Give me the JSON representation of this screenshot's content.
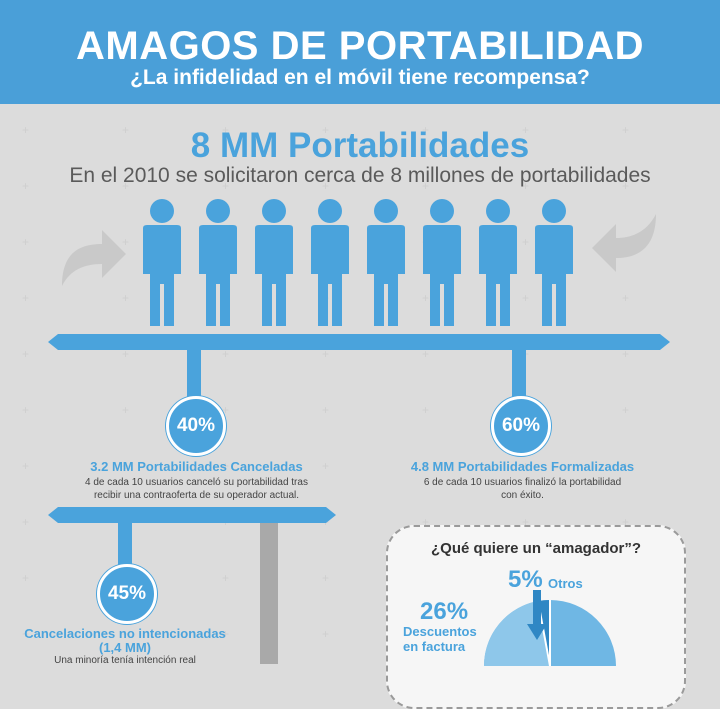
{
  "header": {
    "title": "AMAGOS DE PORTABILIDAD",
    "subtitle": "¿La infidelidad en el móvil tiene recompensa?"
  },
  "intro": {
    "title": "8 MM Portabilidades",
    "subtitle": "En el 2010 se solicitaron cerca de 8 millones de portabilidades"
  },
  "colors": {
    "brand_blue": "#4aa3dc",
    "header_blue": "#4a9fd8",
    "gray": "#a9a9a9"
  },
  "stats": {
    "canceladas": {
      "percent": "40%",
      "title": "3.2 MM Portabilidades Canceladas",
      "desc_line1": "4 de cada 10 usuarios canceló su portabilidad tras",
      "desc_line2": "recibir una contraoferta de su operador actual."
    },
    "formalizadas": {
      "percent": "60%",
      "title": "4.8 MM Portabilidades Formalizadas",
      "desc_line1": "6 de cada 10 usuarios finalizó la portabilidad",
      "desc_line2": "con éxito."
    },
    "no_intencionadas": {
      "percent": "45%",
      "title": "Cancelaciones no intencionadas",
      "subtitle": "(1,4 MM)",
      "desc": "Una minoría tenía intención real"
    }
  },
  "question": {
    "title": "¿Qué quiere un “amagador”?",
    "otros_percent": "5%",
    "otros_label": "Otros",
    "descuentos_percent": "26%",
    "descuentos_label_1": "Descuentos",
    "descuentos_label_2": "en factura"
  }
}
